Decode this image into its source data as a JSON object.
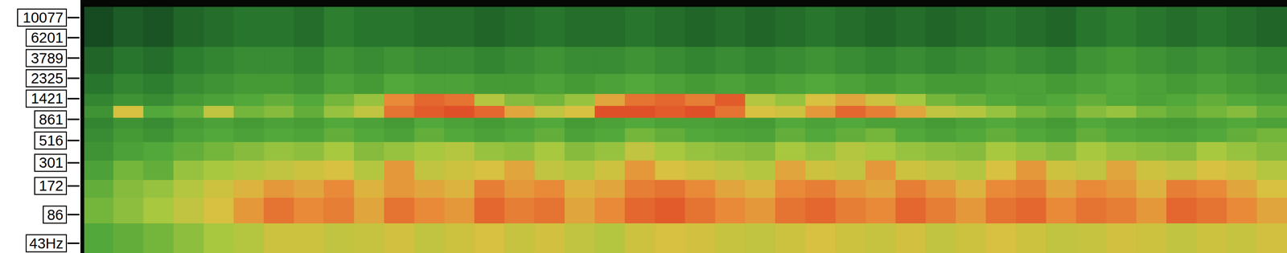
{
  "chart_data": {
    "type": "heatmap",
    "log": "y",
    "tick_labels": "y",
    "grid": false,
    "xlim": [
      0,
      40
    ],
    "ylim": [
      34,
      14000
    ],
    "yticks": [
      {
        "value": 43,
        "label": "43Hz"
      },
      86,
      172,
      301,
      516,
      861,
      1421,
      2325,
      3789,
      6201,
      10077
    ],
    "x_bins": [
      0,
      1,
      2,
      3,
      4,
      5,
      6,
      7,
      8,
      9,
      10,
      11,
      12,
      13,
      14,
      15,
      16,
      17,
      18,
      19,
      20,
      21,
      22,
      23,
      24,
      25,
      26,
      27,
      28,
      29,
      30,
      31,
      32,
      33,
      34,
      35,
      36,
      37,
      38,
      39,
      40
    ],
    "y_bins": [
      34,
      70,
      130,
      200,
      320,
      500,
      700,
      900,
      1200,
      1600,
      2600,
      5000,
      13000
    ],
    "cells": [
      [
        48,
        50,
        52,
        55,
        58,
        60,
        64,
        64,
        62,
        63,
        65,
        62,
        64,
        66,
        63,
        65,
        62,
        60,
        64,
        66,
        65,
        63,
        62,
        64,
        66,
        64,
        63,
        65,
        62,
        64,
        66,
        64,
        62,
        63,
        65,
        64,
        62,
        64,
        63,
        65
      ],
      [
        52,
        55,
        58,
        62,
        66,
        72,
        78,
        74,
        76,
        70,
        78,
        74,
        72,
        80,
        76,
        78,
        70,
        74,
        80,
        82,
        78,
        74,
        72,
        78,
        80,
        76,
        74,
        80,
        76,
        72,
        78,
        80,
        74,
        78,
        76,
        72,
        80,
        78,
        74,
        70
      ],
      [
        50,
        54,
        56,
        60,
        64,
        68,
        72,
        70,
        74,
        68,
        72,
        70,
        68,
        76,
        72,
        74,
        68,
        70,
        76,
        78,
        74,
        70,
        68,
        74,
        76,
        72,
        70,
        76,
        72,
        68,
        74,
        76,
        70,
        74,
        72,
        68,
        76,
        74,
        70,
        66
      ],
      [
        46,
        52,
        50,
        56,
        58,
        60,
        62,
        64,
        66,
        60,
        72,
        62,
        64,
        66,
        70,
        62,
        60,
        64,
        72,
        66,
        64,
        62,
        60,
        70,
        64,
        62,
        72,
        64,
        62,
        60,
        66,
        72,
        64,
        62,
        70,
        64,
        62,
        66,
        64,
        60
      ],
      [
        42,
        46,
        48,
        50,
        52,
        54,
        56,
        55,
        58,
        54,
        56,
        58,
        60,
        56,
        55,
        58,
        54,
        56,
        62,
        58,
        56,
        55,
        54,
        58,
        56,
        60,
        58,
        56,
        55,
        54,
        58,
        56,
        54,
        58,
        56,
        55,
        54,
        58,
        56,
        54
      ],
      [
        40,
        44,
        42,
        46,
        48,
        46,
        48,
        47,
        50,
        48,
        46,
        50,
        48,
        46,
        48,
        50,
        46,
        48,
        52,
        50,
        48,
        47,
        46,
        50,
        48,
        50,
        52,
        48,
        46,
        48,
        50,
        48,
        46,
        50,
        48,
        47,
        46,
        48,
        50,
        52
      ],
      [
        38,
        42,
        40,
        44,
        46,
        44,
        46,
        45,
        48,
        46,
        44,
        48,
        46,
        44,
        46,
        48,
        44,
        46,
        48,
        46,
        46,
        45,
        44,
        48,
        46,
        48,
        46,
        46,
        44,
        46,
        48,
        46,
        44,
        48,
        46,
        45,
        44,
        46,
        48,
        46
      ],
      [
        42,
        66,
        48,
        50,
        62,
        52,
        54,
        50,
        56,
        62,
        78,
        82,
        84,
        80,
        70,
        62,
        66,
        84,
        86,
        82,
        84,
        78,
        66,
        64,
        72,
        80,
        76,
        70,
        62,
        60,
        56,
        52,
        50,
        54,
        56,
        52,
        50,
        52,
        54,
        50
      ],
      [
        38,
        42,
        40,
        44,
        46,
        48,
        50,
        48,
        52,
        56,
        74,
        80,
        78,
        60,
        54,
        52,
        56,
        70,
        78,
        80,
        76,
        82,
        60,
        56,
        66,
        70,
        64,
        58,
        52,
        50,
        48,
        46,
        48,
        50,
        48,
        46,
        48,
        50,
        48,
        46
      ],
      [
        34,
        38,
        36,
        40,
        42,
        44,
        44,
        42,
        46,
        44,
        48,
        46,
        46,
        44,
        44,
        46,
        44,
        46,
        48,
        46,
        44,
        46,
        44,
        46,
        48,
        46,
        44,
        46,
        44,
        44,
        46,
        46,
        44,
        46,
        48,
        46,
        44,
        46,
        44,
        42
      ],
      [
        30,
        34,
        32,
        36,
        38,
        40,
        40,
        38,
        42,
        40,
        42,
        40,
        40,
        38,
        40,
        42,
        40,
        40,
        42,
        40,
        38,
        40,
        38,
        40,
        42,
        40,
        38,
        40,
        38,
        40,
        42,
        40,
        38,
        42,
        44,
        42,
        40,
        42,
        40,
        38
      ],
      [
        24,
        28,
        26,
        30,
        32,
        34,
        34,
        32,
        36,
        34,
        34,
        32,
        32,
        30,
        32,
        34,
        32,
        32,
        34,
        32,
        30,
        32,
        30,
        32,
        34,
        32,
        30,
        32,
        30,
        32,
        34,
        32,
        30,
        34,
        36,
        34,
        32,
        34,
        32,
        30
      ]
    ]
  }
}
